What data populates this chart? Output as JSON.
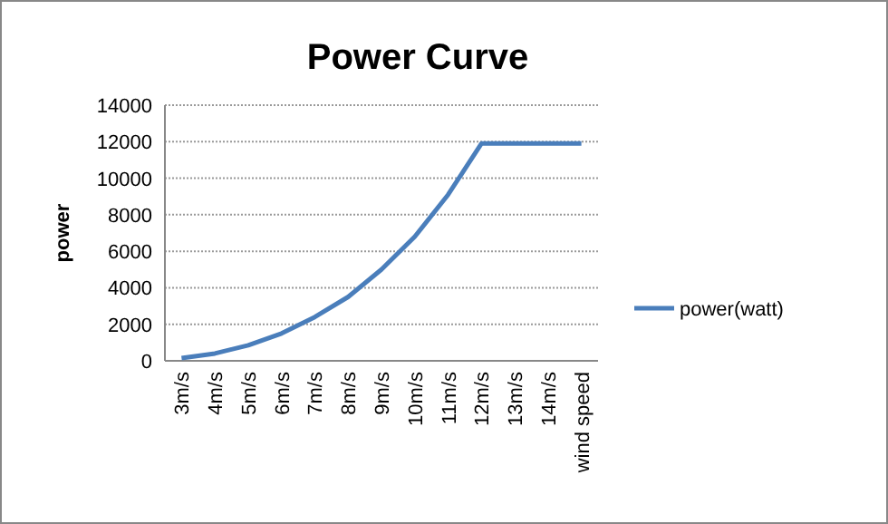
{
  "chart_data": {
    "type": "line",
    "title": "Power Curve",
    "ylabel": "power",
    "categories": [
      "3m/s",
      "4m/s",
      "5m/s",
      "6m/s",
      "7m/s",
      "8m/s",
      "9m/s",
      "10m/s",
      "11m/s",
      "12m/s",
      "13m/s",
      "14m/s",
      "wind speed"
    ],
    "series": [
      {
        "name": "power(watt)",
        "color": "#4a7ebb",
        "values": [
          150,
          400,
          850,
          1500,
          2400,
          3500,
          5000,
          6800,
          9100,
          11900,
          11900,
          11900,
          11900
        ]
      }
    ],
    "ylim": [
      0,
      14000
    ],
    "yticks": [
      0,
      2000,
      4000,
      6000,
      8000,
      10000,
      12000,
      14000
    ],
    "grid": "y",
    "legend": "right",
    "marker": "none"
  }
}
